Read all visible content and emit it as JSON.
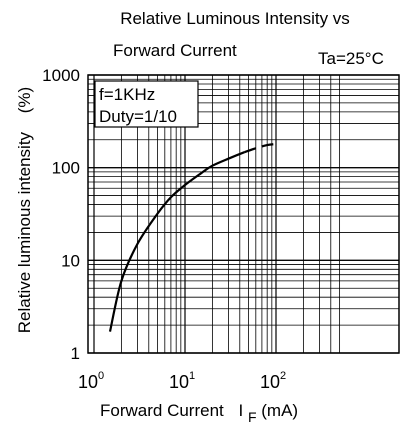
{
  "chart_data": {
    "type": "line",
    "title_line1": "Relative Luminous Intensity vs",
    "title_line2": "Forward Current",
    "condition": "Ta=25°C",
    "ylabel": "Relative luminous intensity",
    "ylabel_unit": "(%)",
    "xlabel_prefix": "Forward Current",
    "xlabel_symbol": "I",
    "xlabel_subscript": "F",
    "xlabel_unit": "(mA)",
    "x_scale": "log",
    "y_scale": "log",
    "xlim": [
      1,
      500
    ],
    "ylim": [
      1,
      1000
    ],
    "grid": true,
    "x_ticks": [
      {
        "value": 1,
        "base": "10",
        "exp": "0"
      },
      {
        "value": 10,
        "base": "10",
        "exp": "1"
      },
      {
        "value": 100,
        "base": "10",
        "exp": "2"
      }
    ],
    "y_ticks": [
      {
        "value": 1,
        "label": "1"
      },
      {
        "value": 10,
        "label": "10"
      },
      {
        "value": 100,
        "label": "100"
      },
      {
        "value": 1000,
        "label": "1000"
      }
    ],
    "legend_lines": [
      "f=1KHz",
      "Duty=1/10"
    ],
    "legend_position": "top-left",
    "series": [
      {
        "style": "solid",
        "x": [
          1.5,
          2,
          3,
          5,
          7,
          10,
          15,
          20,
          30,
          45
        ],
        "y": [
          1.7,
          6,
          15,
          32,
          48,
          65,
          87,
          105,
          125,
          147
        ]
      },
      {
        "style": "dashed",
        "x": [
          45,
          60,
          80,
          100
        ],
        "y": [
          147,
          162,
          175,
          180
        ]
      }
    ]
  }
}
